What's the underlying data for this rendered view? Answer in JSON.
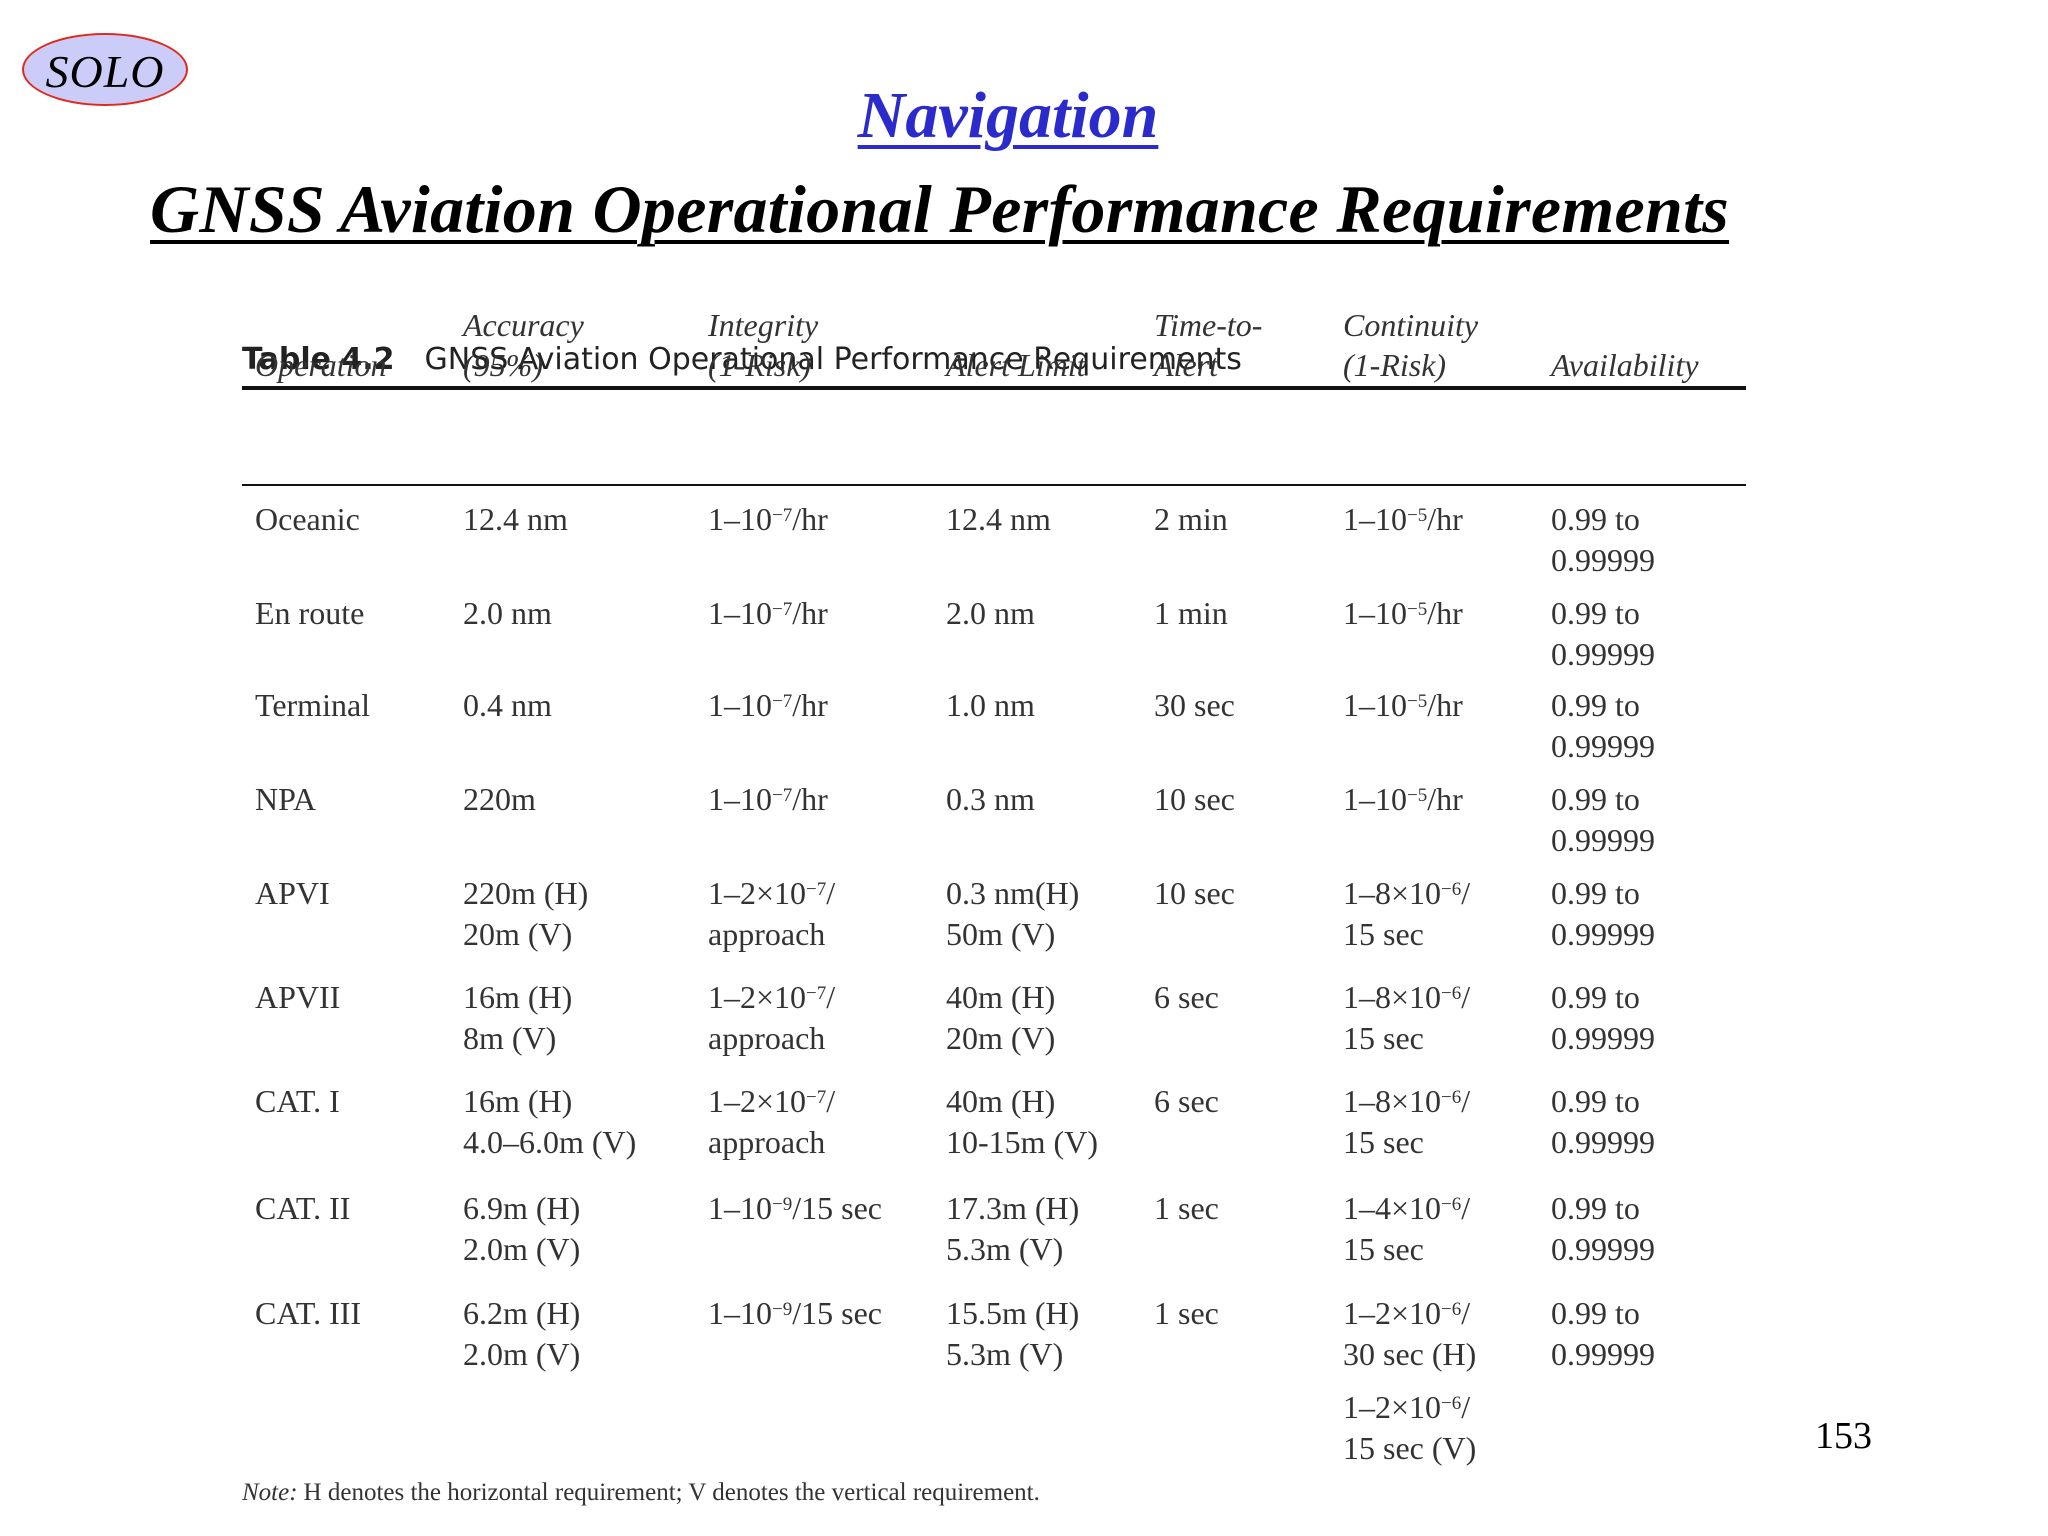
{
  "logo": {
    "text": "SOLO",
    "fill": "#cbcdf8",
    "stroke": "#e0281e"
  },
  "header": {
    "section_title": "Navigation",
    "section_title_color": "#2b2bcc",
    "slide_title": "GNSS Aviation Operational Performance Requirements"
  },
  "table": {
    "caption_number": "Table 4.2",
    "caption_title": "GNSS Aviation Operational Performance Requirements",
    "columns": [
      {
        "line1": "",
        "line2": "Operation"
      },
      {
        "line1": "Accuracy",
        "line2": "(95%)"
      },
      {
        "line1": "Integrity",
        "line2": "(1-Risk)"
      },
      {
        "line1": "",
        "line2": "Alert Limit"
      },
      {
        "line1": "Time-to-",
        "line2": "Alert"
      },
      {
        "line1": "Continuity",
        "line2": "(1-Risk)"
      },
      {
        "line1": "",
        "line2": "Availability"
      }
    ],
    "rows": [
      {
        "operation": "Oceanic",
        "accuracy": [
          "12.4 nm"
        ],
        "integrity": [
          "1–10^-7/hr"
        ],
        "alert_limit": [
          "12.4 nm"
        ],
        "time_to_alert": "2 min",
        "continuity": [
          "1–10^-5/hr"
        ],
        "availability": [
          "0.99 to",
          "0.99999"
        ]
      },
      {
        "operation": "En route",
        "accuracy": [
          "2.0 nm"
        ],
        "integrity": [
          "1–10^-7/hr"
        ],
        "alert_limit": [
          "2.0 nm"
        ],
        "time_to_alert": "1 min",
        "continuity": [
          "1–10^-5/hr"
        ],
        "availability": [
          "0.99 to",
          "0.99999"
        ]
      },
      {
        "operation": "Terminal",
        "accuracy": [
          "0.4 nm"
        ],
        "integrity": [
          "1–10^-7/hr"
        ],
        "alert_limit": [
          "1.0 nm"
        ],
        "time_to_alert": "30 sec",
        "continuity": [
          "1–10^-5/hr"
        ],
        "availability": [
          "0.99 to",
          "0.99999"
        ]
      },
      {
        "operation": "NPA",
        "accuracy": [
          "220m"
        ],
        "integrity": [
          "1–10^-7/hr"
        ],
        "alert_limit": [
          "0.3 nm"
        ],
        "time_to_alert": "10 sec",
        "continuity": [
          "1–10^-5/hr"
        ],
        "availability": [
          "0.99 to",
          "0.99999"
        ]
      },
      {
        "operation": "APVI",
        "accuracy": [
          "220m (H)",
          "20m (V)"
        ],
        "integrity": [
          "1–2×10^-7/",
          "approach"
        ],
        "alert_limit": [
          "0.3 nm(H)",
          "50m (V)"
        ],
        "time_to_alert": "10 sec",
        "continuity": [
          "1–8×10^-6/",
          "15 sec"
        ],
        "availability": [
          "0.99 to",
          "0.99999"
        ]
      },
      {
        "operation": "APVII",
        "accuracy": [
          "16m (H)",
          "8m (V)"
        ],
        "integrity": [
          "1–2×10^-7/",
          "approach"
        ],
        "alert_limit": [
          "40m (H)",
          "20m (V)"
        ],
        "time_to_alert": "6 sec",
        "continuity": [
          "1–8×10^-6/",
          "15 sec"
        ],
        "availability": [
          "0.99 to",
          "0.99999"
        ]
      },
      {
        "operation": "CAT. I",
        "accuracy": [
          "16m (H)",
          "4.0–6.0m (V)"
        ],
        "integrity": [
          "1–2×10^-7/",
          "approach"
        ],
        "alert_limit": [
          "40m (H)",
          "10-15m (V)"
        ],
        "time_to_alert": "6 sec",
        "continuity": [
          "1–8×10^-6/",
          "15 sec"
        ],
        "availability": [
          "0.99 to",
          "0.99999"
        ]
      },
      {
        "operation": "CAT. II",
        "accuracy": [
          "6.9m (H)",
          "2.0m (V)"
        ],
        "integrity": [
          "1–10^-9/15 sec"
        ],
        "alert_limit": [
          "17.3m (H)",
          "5.3m (V)"
        ],
        "time_to_alert": "1 sec",
        "continuity": [
          "1–4×10^-6/",
          "15 sec"
        ],
        "availability": [
          "0.99 to",
          "0.99999"
        ]
      },
      {
        "operation": "CAT. III",
        "accuracy": [
          "6.2m (H)",
          "2.0m (V)"
        ],
        "integrity": [
          "1–10^-9/15 sec"
        ],
        "alert_limit": [
          "15.5m (H)",
          "5.3m (V)"
        ],
        "time_to_alert": "1 sec",
        "continuity": [
          "1–2×10^-6/",
          "30 sec (H)",
          "1–2×10^-6/",
          "15 sec (V)"
        ],
        "availability": [
          "0.99 to",
          "0.99999"
        ]
      }
    ],
    "note_label": "Note:",
    "note_text": "H denotes the horizontal requirement; V denotes the vertical requirement."
  },
  "footer": {
    "page_number": "153"
  }
}
